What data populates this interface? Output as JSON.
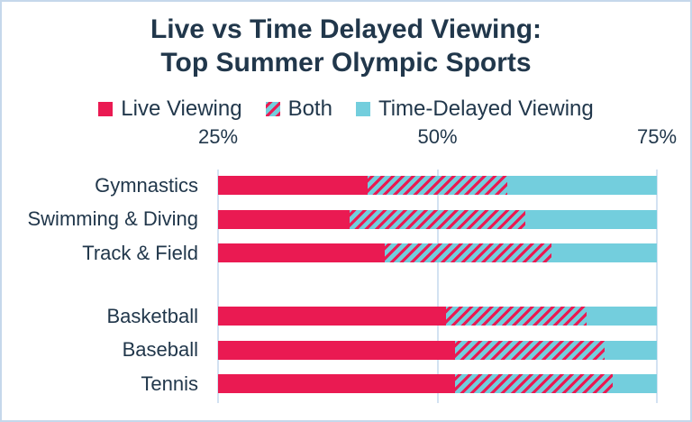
{
  "title": {
    "line1": "Live vs Time Delayed Viewing:",
    "line2": "Top Summer Olympic Sports"
  },
  "legend": {
    "items": [
      {
        "key": "live",
        "label": "Live Viewing"
      },
      {
        "key": "both",
        "label": "Both"
      },
      {
        "key": "delayed",
        "label": "Time-Delayed Viewing"
      }
    ]
  },
  "colors": {
    "live": "#EA1A52",
    "delayed": "#73CEDD",
    "text": "#21374B",
    "gridline": "#D3E2F2",
    "border": "#C5D8EB"
  },
  "chart_data": {
    "type": "bar",
    "orientation": "horizontal-stacked",
    "title": "Live vs Time Delayed Viewing: Top Summer Olympic Sports",
    "series_names": [
      "Live Viewing",
      "Both",
      "Time-Delayed Viewing"
    ],
    "x_axis": {
      "min": 25,
      "max": 75,
      "ticks": [
        {
          "label": "25%",
          "value": 25
        },
        {
          "label": "50%",
          "value": 50
        },
        {
          "label": "75%",
          "value": 75
        }
      ],
      "note": "Each sport's three segments sum to 100%; the plot window shows only the 25%-75% range, so bars are clipped at both edges."
    },
    "groups": [
      {
        "sports": [
          {
            "label": "Gymnastics",
            "live": 42,
            "both": 16,
            "delayed": 42
          },
          {
            "label": "Swimming & Diving",
            "live": 40,
            "both": 20,
            "delayed": 40
          },
          {
            "label": "Track & Field",
            "live": 44,
            "both": 19,
            "delayed": 37
          }
        ]
      },
      {
        "sports": [
          {
            "label": "Basketball",
            "live": 51,
            "both": 16,
            "delayed": 33
          },
          {
            "label": "Baseball",
            "live": 52,
            "both": 17,
            "delayed": 31
          },
          {
            "label": "Tennis",
            "live": 52,
            "both": 18,
            "delayed": 30
          }
        ]
      }
    ]
  }
}
